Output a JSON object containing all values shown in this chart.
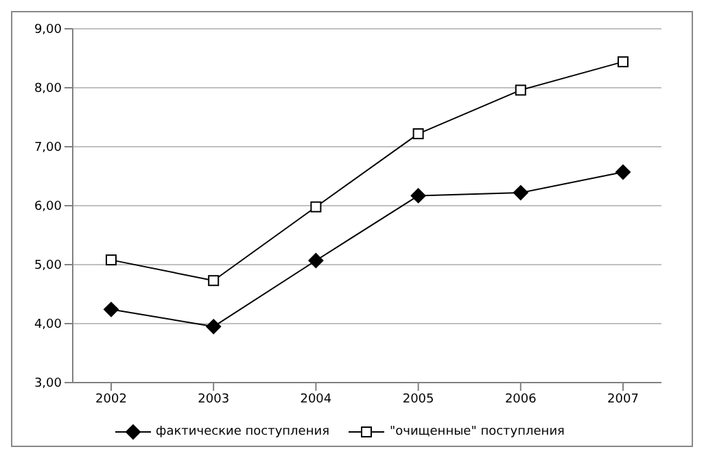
{
  "chart_data": {
    "type": "line",
    "categories": [
      "2002",
      "2003",
      "2004",
      "2005",
      "2006",
      "2007"
    ],
    "series": [
      {
        "name": "фактические поступления",
        "color": "#000000",
        "marker": "diamond",
        "values": [
          4.24,
          3.95,
          5.07,
          6.17,
          6.22,
          6.57
        ]
      },
      {
        "name": "\"очищенные\" поступления",
        "color": "#000000",
        "marker": "square",
        "values": [
          5.08,
          4.73,
          5.98,
          7.22,
          7.96,
          8.44
        ]
      }
    ],
    "ylim": [
      3,
      9
    ],
    "yticks": [
      {
        "value": 3,
        "label": "3,00"
      },
      {
        "value": 4,
        "label": "4,00"
      },
      {
        "value": 5,
        "label": "5,00"
      },
      {
        "value": 6,
        "label": "6,00"
      },
      {
        "value": 7,
        "label": "7,00"
      },
      {
        "value": 8,
        "label": "8,00"
      },
      {
        "value": 9,
        "label": "9,00"
      }
    ],
    "grid": "y",
    "legend": "bottom",
    "line_style": "solid"
  }
}
